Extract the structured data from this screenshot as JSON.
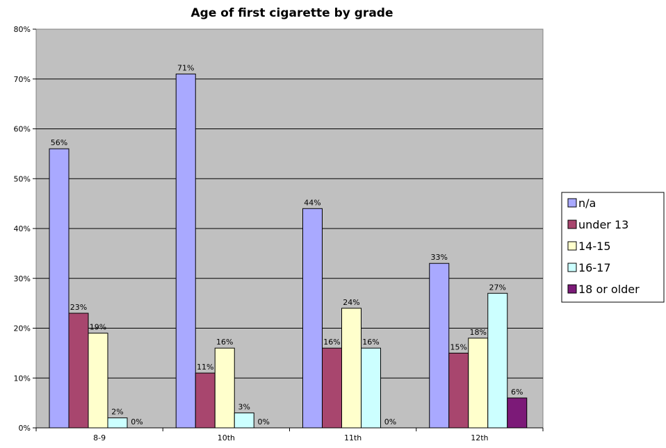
{
  "chart_data": {
    "type": "bar",
    "title": "Age of first cigarette by grade",
    "xlabel": "",
    "ylabel": "",
    "categories": [
      "8-9",
      "10th",
      "11th",
      "12th"
    ],
    "series": [
      {
        "name": "n/a",
        "color": "#a9a9ff",
        "values": [
          56,
          71,
          44,
          33
        ],
        "labels": [
          "56%",
          "71%",
          "44%",
          "33%"
        ]
      },
      {
        "name": "under 13",
        "color": "#a8466e",
        "values": [
          23,
          11,
          16,
          15
        ],
        "labels": [
          "23%",
          "11%",
          "16%",
          "15%"
        ]
      },
      {
        "name": "14-15",
        "color": "#ffffcc",
        "values": [
          19,
          16,
          24,
          18
        ],
        "labels": [
          "19%",
          "16%",
          "24%",
          "18%"
        ]
      },
      {
        "name": "16-17",
        "color": "#ccffff",
        "values": [
          2,
          3,
          16,
          27
        ],
        "labels": [
          "2%",
          "3%",
          "16%",
          "27%"
        ]
      },
      {
        "name": "18 or older",
        "color": "#7c1a78",
        "values": [
          0,
          0,
          0,
          6
        ],
        "labels": [
          "0%",
          "0%",
          "0%",
          "6%"
        ]
      }
    ],
    "ylim": [
      0,
      80
    ],
    "ytick_labels": [
      "0%",
      "10%",
      "20%",
      "30%",
      "40%",
      "50%",
      "60%",
      "70%",
      "80%"
    ],
    "grid": true,
    "legend_position": "right",
    "plot_background": "#c0c0c0"
  }
}
